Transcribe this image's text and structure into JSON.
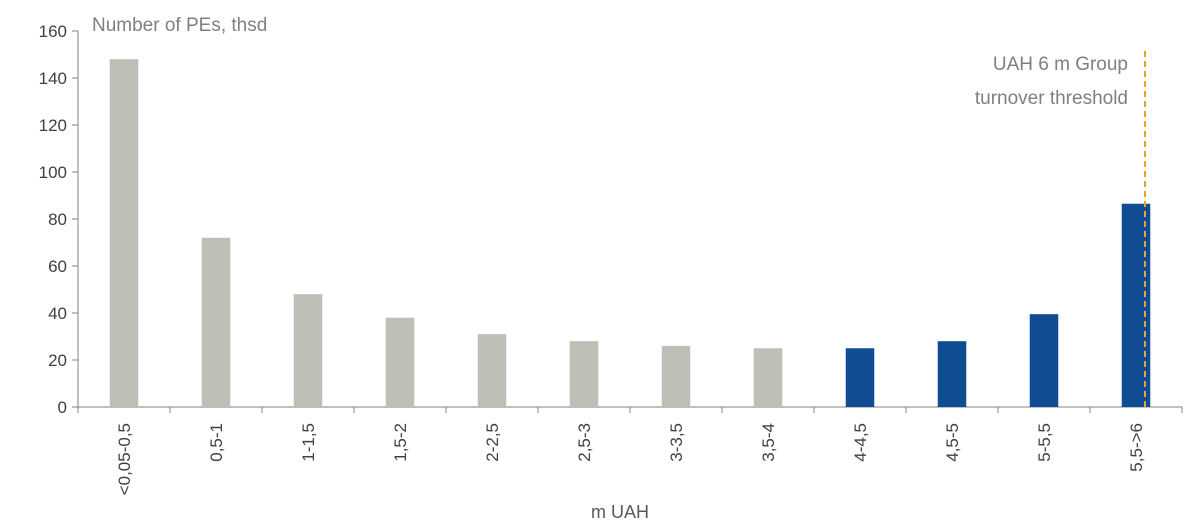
{
  "chart_data": {
    "type": "bar",
    "ylabel": "Number of PEs, thsd",
    "xlabel": "m UAH",
    "categories": [
      "<0,05-0,5",
      "0,5-1",
      "1-1,5",
      "1,5-2",
      "2-2,5",
      "2,5-3",
      "3-3,5",
      "3,5-4",
      "4-4,5",
      "4,5-5",
      "5-5,5",
      "5,5->6"
    ],
    "values": [
      148,
      72,
      48,
      38,
      31,
      28,
      26,
      25,
      25,
      28,
      39.5,
      86.5
    ],
    "colors": [
      "#BFBEB6",
      "#BFBEB6",
      "#BFBEB6",
      "#BFBEB6",
      "#BFBEB6",
      "#BFBEB6",
      "#BFBEB6",
      "#BFBEB6",
      "#0F4C92",
      "#0F4C92",
      "#0F4C92",
      "#0F4C92"
    ],
    "ylim": [
      0,
      160
    ],
    "yticks": [
      0,
      20,
      40,
      60,
      80,
      100,
      120,
      140,
      160
    ],
    "grid": false,
    "annotation": {
      "lines": [
        "UAH 6 m Group",
        "turnover threshold"
      ],
      "color": "#F0A030"
    }
  }
}
